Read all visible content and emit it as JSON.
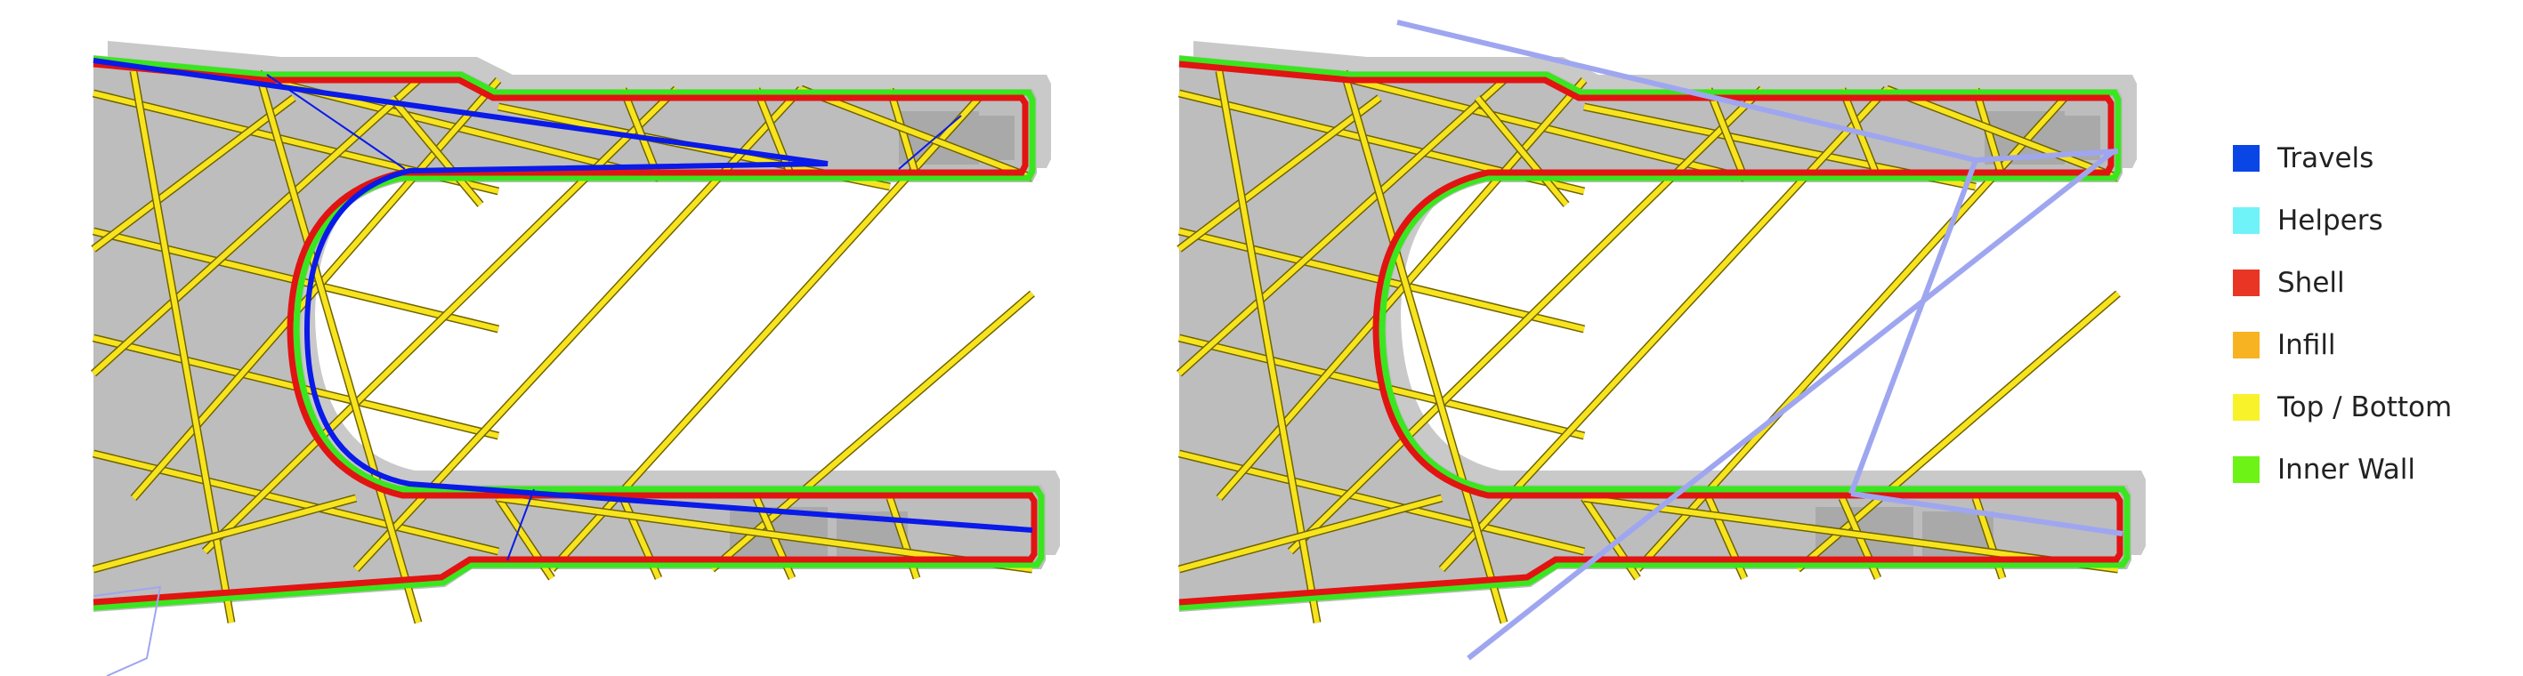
{
  "legend": {
    "items": [
      {
        "label": "Travels",
        "color": "#0a46e6"
      },
      {
        "label": "Helpers",
        "color": "#6ff3f8"
      },
      {
        "label": "Shell",
        "color": "#e83524"
      },
      {
        "label": "Infill",
        "color": "#f7b322"
      },
      {
        "label": "Top / Bottom",
        "color": "#f8f22a"
      },
      {
        "label": "Inner Wall",
        "color": "#6df316"
      }
    ]
  },
  "colors": {
    "model_shadow": "#c9c9c9",
    "model_face": "#bdbdbd",
    "model_recess": "#a9a9a9",
    "top_bottom_line": "#f8e41e",
    "top_bottom_edge": "#6f6400",
    "inner_wall": "#3ae61f",
    "shell": "#e11412",
    "travel_active": "#0a1ae8",
    "travel_faded": "#9fa6f0"
  },
  "panels": [
    {
      "name": "layer-view-left",
      "travel_style": "active"
    },
    {
      "name": "layer-view-right",
      "travel_style": "faded"
    }
  ]
}
